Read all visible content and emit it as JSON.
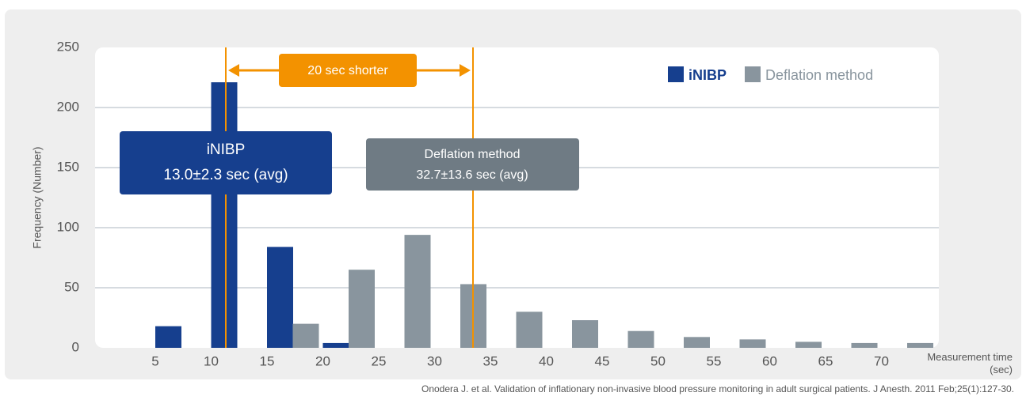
{
  "chart_data": {
    "type": "bar",
    "ylabel": "Frequency (Number)",
    "xlabel": "Measurement time (sec)",
    "categories": [
      "5",
      "10",
      "15",
      "20",
      "25",
      "30",
      "35",
      "40",
      "45",
      "50",
      "55",
      "60",
      "65",
      "70",
      null
    ],
    "series": [
      {
        "name": "iNIBP",
        "color": "#163f8e",
        "values": [
          18,
          221,
          84,
          4,
          0,
          0,
          0,
          0,
          0,
          0,
          0,
          0,
          0,
          0,
          0
        ]
      },
      {
        "name": "Deflation method",
        "color": "#89959e",
        "values": [
          0,
          0,
          0,
          20,
          65,
          94,
          53,
          30,
          23,
          14,
          9,
          7,
          5,
          4,
          4
        ]
      }
    ],
    "ylim": [
      0,
      250
    ],
    "yticks": [
      0,
      50,
      100,
      150,
      200,
      250
    ],
    "grid": true,
    "legend": "top-right",
    "annotations": {
      "arrow_label": "20 sec shorter",
      "inibp_box": [
        "iNIBP",
        "13.0±2.3 sec (avg)"
      ],
      "deflation_box": [
        "Deflation method",
        "32.7±13.6 sec (avg)"
      ]
    },
    "source": "Onodera J. et al. Validation of inflationary non-invasive blood pressure monitoring in adult surgical patients. J Anesth. 2011 Feb;25(1):127-30."
  }
}
